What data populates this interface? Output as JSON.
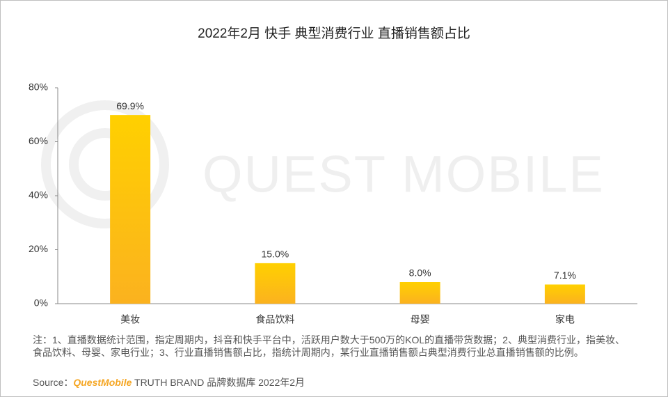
{
  "chart_data": {
    "type": "bar",
    "title": "2022年2月 快手 典型消费行业 直播销售额占比",
    "categories": [
      "美妆",
      "食品饮料",
      "母婴",
      "家电"
    ],
    "values": [
      69.9,
      15.0,
      8.0,
      7.1
    ],
    "value_labels": [
      "69.9%",
      "15.0%",
      "8.0%",
      "7.1%"
    ],
    "color": "#ffc000",
    "ylim": [
      0,
      80
    ],
    "yticks": [
      {
        "value": 0,
        "label": "0%"
      },
      {
        "value": 20,
        "label": "20%"
      },
      {
        "value": 40,
        "label": "40%"
      },
      {
        "value": 60,
        "label": "60%"
      },
      {
        "value": 80,
        "label": "80%"
      }
    ],
    "watermark": "QUEST MOBILE",
    "note": "注：1、直播数据统计范围，指定周期内，抖音和快手平台中，活跃用户数大于500万的KOL的直播带货数据；2、典型消费行业，指美妆、食品饮料、母婴、家电行业；3、行业直播销售额占比，指统计周期内，某行业直播销售额占典型消费行业总直播销售额的比例。",
    "source_label": "Source：",
    "source_brand": "QuestMobile",
    "source_text": "TRUTH BRAND 品牌数据库 2022年2月"
  }
}
